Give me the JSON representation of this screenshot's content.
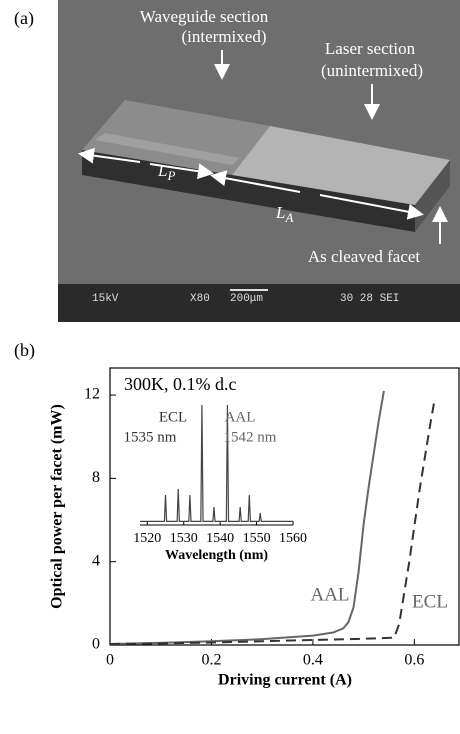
{
  "panel_a": {
    "label": "(a)",
    "waveguide_label": "Waveguide section",
    "waveguide_sub": "(intermixed)",
    "laser_label": "Laser section",
    "laser_sub": "(unintermixed)",
    "lp": {
      "symbol": "L",
      "subscript": "P"
    },
    "la": {
      "symbol": "L",
      "subscript": "A"
    },
    "facet_label": "As cleaved facet",
    "sem_bar": {
      "voltage": "15kV",
      "magnification": "X80",
      "scale": "200μm",
      "info": "30 28 SEI"
    }
  },
  "panel_b_label": "(b)",
  "chart_data": [
    {
      "type": "line",
      "annotation": "300K, 0.1% d.c",
      "x_label": "Driving current (A)",
      "y_label": "Optical power per facet (mW)",
      "xlim": [
        0,
        0.69
      ],
      "ylim": [
        0,
        13.3
      ],
      "xticks": [
        0,
        0.2,
        0.4,
        0.6
      ],
      "yticks": [
        0,
        4,
        8,
        12
      ],
      "series": [
        {
          "name": "AAL",
          "color": "#666666",
          "dash": false,
          "x": [
            0,
            0.1,
            0.2,
            0.3,
            0.4,
            0.44,
            0.46,
            0.47,
            0.48,
            0.49,
            0.5,
            0.51,
            0.52,
            0.53,
            0.54
          ],
          "values": [
            0.05,
            0.1,
            0.18,
            0.28,
            0.45,
            0.6,
            0.8,
            1.1,
            1.8,
            3.5,
            5.8,
            7.6,
            9.2,
            10.8,
            12.2
          ]
        },
        {
          "name": "ECL",
          "color": "#333333",
          "dash": true,
          "x": [
            0,
            0.1,
            0.2,
            0.3,
            0.4,
            0.5,
            0.56,
            0.57,
            0.58,
            0.59,
            0.6,
            0.61,
            0.62,
            0.63,
            0.64
          ],
          "values": [
            0.05,
            0.08,
            0.12,
            0.18,
            0.24,
            0.3,
            0.35,
            1.0,
            2.5,
            4.0,
            5.7,
            7.4,
            8.9,
            10.4,
            11.8
          ]
        }
      ]
    },
    {
      "type": "line",
      "x_label": "Wavelength (nm)",
      "xlim": [
        1518,
        1560
      ],
      "ylim": [
        0,
        1
      ],
      "xticks": [
        1520,
        1530,
        1540,
        1550,
        1560
      ],
      "peak_labels": [
        {
          "name": "ECL",
          "wavelength": "1535 nm"
        },
        {
          "name": "AAL",
          "wavelength": "1542 nm"
        }
      ],
      "series": [
        {
          "color": "#444444",
          "x": [
            1518,
            1524.7,
            1525,
            1525.3,
            1528.2,
            1528.5,
            1528.8,
            1531.4,
            1531.7,
            1532,
            1534.7,
            1535,
            1535.3,
            1538,
            1538.3,
            1538.6,
            1541.7,
            1542,
            1542.3,
            1545.2,
            1545.5,
            1545.8,
            1547.7,
            1548,
            1548.3,
            1550.7,
            1551,
            1551.3,
            1560
          ],
          "values": [
            0.03,
            0.03,
            0.25,
            0.03,
            0.03,
            0.3,
            0.03,
            0.03,
            0.25,
            0.03,
            0.03,
            1.0,
            0.03,
            0.03,
            0.15,
            0.03,
            0.03,
            1.0,
            0.03,
            0.03,
            0.15,
            0.03,
            0.03,
            0.25,
            0.03,
            0.03,
            0.1,
            0.03,
            0.03
          ]
        }
      ]
    }
  ]
}
